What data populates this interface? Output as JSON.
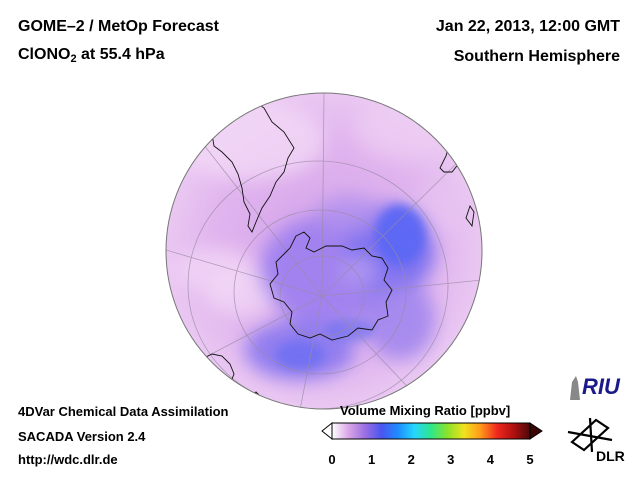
{
  "header": {
    "title_line1": "GOME–2 / MetOp Forecast",
    "species": "ClONO",
    "species_sub": "2",
    "level": " at 55.4 hPa",
    "datetime": "Jan 22, 2013, 12:00 GMT",
    "region": "Southern Hemisphere"
  },
  "footer": {
    "line1": "4DVar Chemical Data Assimilation",
    "line2": "SACADA Version 2.4",
    "line3": "http://wdc.dlr.de"
  },
  "colorbar": {
    "title": "Volume Mixing Ratio [ppbv]",
    "ticks": [
      "0",
      "1",
      "2",
      "3",
      "4",
      "5"
    ],
    "min": 0,
    "max": 5,
    "colors": [
      "#ffffff",
      "#d9a6e6",
      "#9b6fe3",
      "#4a55f0",
      "#1e8cff",
      "#26d6ff",
      "#2ee68a",
      "#8be22a",
      "#f0e21e",
      "#ff9a1a",
      "#f0281e",
      "#b01010",
      "#4a0808"
    ]
  },
  "map_values": {
    "background_ppbv": 0.2,
    "polar_vortex_ppbv": 0.65
  },
  "logos": {
    "riu": "RIU",
    "dlr": "DLR"
  }
}
